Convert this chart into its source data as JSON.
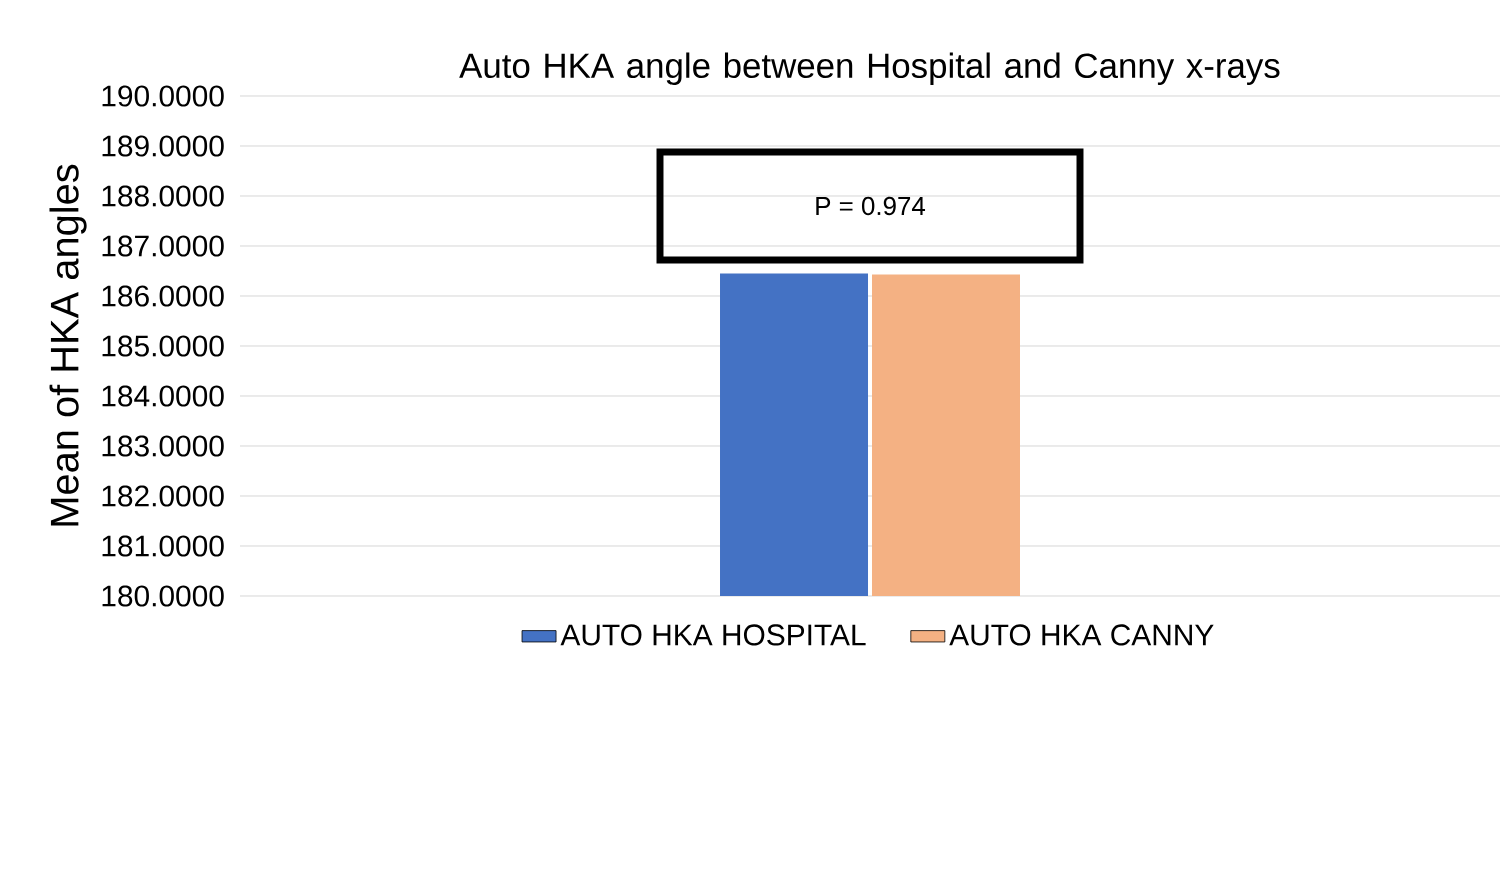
{
  "chart_data": {
    "type": "bar",
    "title": "Auto HKA angle between Hospital and Canny x-rays",
    "ylabel": "Mean of HKA angles",
    "categories": [
      null
    ],
    "series": [
      {
        "name": "AUTO HKA HOSPITAL",
        "color": "#4472c4",
        "values": [
          186.45
        ]
      },
      {
        "name": "AUTO HKA CANNY",
        "color": "#f4b183",
        "values": [
          186.43
        ]
      }
    ],
    "ylim": [
      180,
      190
    ],
    "yticks": [
      {
        "value": 180,
        "label": "180.0000"
      },
      {
        "value": 181,
        "label": "181.0000"
      },
      {
        "value": 182,
        "label": "182.0000"
      },
      {
        "value": 183,
        "label": "183.0000"
      },
      {
        "value": 184,
        "label": "184.0000"
      },
      {
        "value": 185,
        "label": "185.0000"
      },
      {
        "value": 186,
        "label": "186.0000"
      },
      {
        "value": 187,
        "label": "187.0000"
      },
      {
        "value": 188,
        "label": "188.0000"
      },
      {
        "value": 189,
        "label": "189.0000"
      },
      {
        "value": 190,
        "label": "190.0000"
      }
    ],
    "annotations": [
      "P = 0.974"
    ],
    "grid": "y",
    "legend": "bottom"
  }
}
